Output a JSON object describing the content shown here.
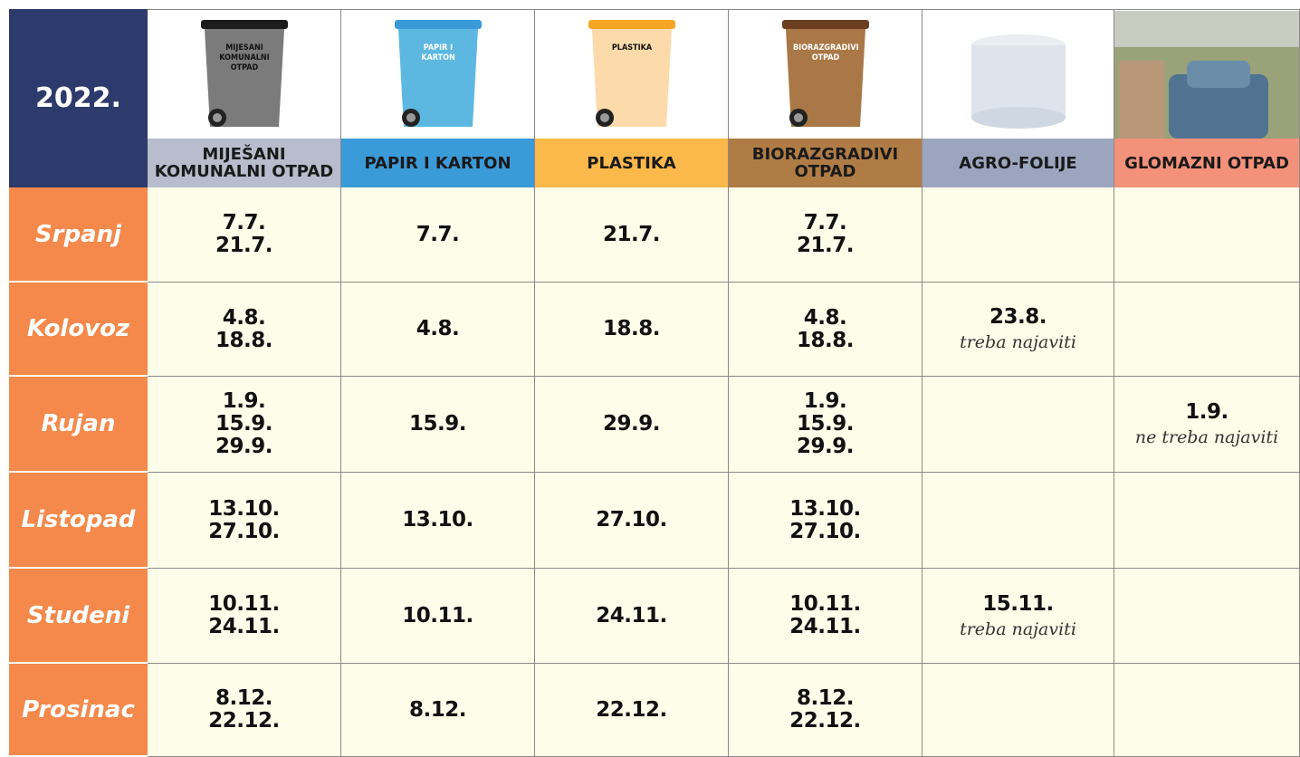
{
  "table": {
    "corner": "2022.",
    "columns": [
      {
        "label": "MIJEŠANI KOMUNALNI OTPAD",
        "icon_label": "MIJEŠANI KOMUNALNI OTPAD"
      },
      {
        "label": "PAPIR I KARTON",
        "icon_label": "PAPIR I KARTON"
      },
      {
        "label": "PLASTIKA",
        "icon_label": "PLASTIKA"
      },
      {
        "label": "BIORAZGRADIVI OTPAD",
        "icon_label": "BIORAZGRADIVI OTPAD"
      },
      {
        "label": "AGRO-FOLIJE"
      },
      {
        "label": "GLOMAZNI OTPAD"
      }
    ],
    "rows": [
      {
        "month": "Srpanj",
        "cells": [
          {
            "dates": [
              "7.7.",
              "21.7."
            ]
          },
          {
            "dates": [
              "7.7."
            ]
          },
          {
            "dates": [
              "21.7."
            ]
          },
          {
            "dates": [
              "7.7.",
              "21.7."
            ]
          },
          {
            "dates": []
          },
          {
            "dates": []
          }
        ]
      },
      {
        "month": "Kolovoz",
        "cells": [
          {
            "dates": [
              "4.8.",
              "18.8."
            ]
          },
          {
            "dates": [
              "4.8."
            ]
          },
          {
            "dates": [
              "18.8."
            ]
          },
          {
            "dates": [
              "4.8.",
              "18.8."
            ]
          },
          {
            "dates": [
              "23.8."
            ],
            "note": "treba najaviti"
          },
          {
            "dates": []
          }
        ]
      },
      {
        "month": "Rujan",
        "cells": [
          {
            "dates": [
              "1.9.",
              "15.9.",
              "29.9."
            ]
          },
          {
            "dates": [
              "15.9."
            ]
          },
          {
            "dates": [
              "29.9."
            ]
          },
          {
            "dates": [
              "1.9.",
              "15.9.",
              "29.9."
            ]
          },
          {
            "dates": []
          },
          {
            "dates": [
              "1.9."
            ],
            "note": "ne treba najaviti"
          }
        ]
      },
      {
        "month": "Listopad",
        "cells": [
          {
            "dates": [
              "13.10.",
              "27.10."
            ]
          },
          {
            "dates": [
              "13.10."
            ]
          },
          {
            "dates": [
              "27.10."
            ]
          },
          {
            "dates": [
              "13.10.",
              "27.10."
            ]
          },
          {
            "dates": []
          },
          {
            "dates": []
          }
        ]
      },
      {
        "month": "Studeni",
        "cells": [
          {
            "dates": [
              "10.11.",
              "24.11."
            ]
          },
          {
            "dates": [
              "10.11."
            ]
          },
          {
            "dates": [
              "24.11."
            ]
          },
          {
            "dates": [
              "10.11.",
              "24.11."
            ]
          },
          {
            "dates": [
              "15.11."
            ],
            "note": "treba najaviti"
          },
          {
            "dates": []
          }
        ]
      },
      {
        "month": "Prosinac",
        "cells": [
          {
            "dates": [
              "8.12.",
              "22.12."
            ]
          },
          {
            "dates": [
              "8.12."
            ]
          },
          {
            "dates": [
              "22.12."
            ]
          },
          {
            "dates": [
              "8.12.",
              "22.12."
            ]
          },
          {
            "dates": []
          },
          {
            "dates": []
          }
        ]
      }
    ]
  }
}
